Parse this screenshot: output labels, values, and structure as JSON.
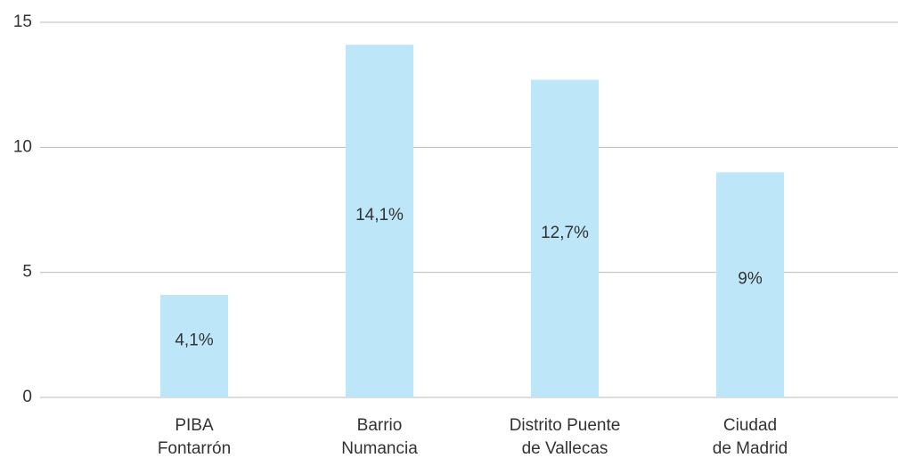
{
  "chart_data": {
    "type": "bar",
    "categories": [
      [
        "PIBA",
        "Fontarrón"
      ],
      [
        "Barrio",
        "Numancia"
      ],
      [
        "Distrito Puente",
        "de Vallecas"
      ],
      [
        "Ciudad",
        "de Madrid"
      ]
    ],
    "values": [
      4.1,
      14.1,
      12.7,
      9
    ],
    "value_labels": [
      "4,1%",
      "14,1%",
      "12,7%",
      "9%"
    ],
    "color": "#bde6f8",
    "ylim": [
      0,
      15
    ],
    "yticks": [
      0,
      5,
      10,
      15
    ],
    "grid": true
  }
}
